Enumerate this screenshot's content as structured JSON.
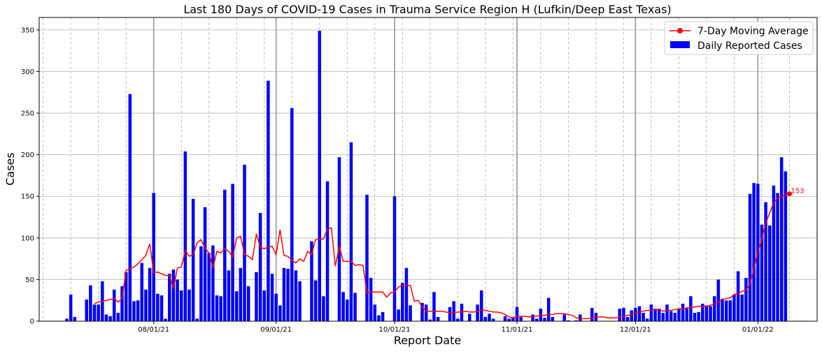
{
  "chart_data": {
    "type": "bar",
    "title": "Last 180 Days of COVID-19 Cases in Trauma Service Region H (Lufkin/Deep East Texas)",
    "xlabel": "Report Date",
    "ylabel": "Cases",
    "ylim": [
      0,
      365
    ],
    "yticks": [
      0,
      50,
      100,
      150,
      200,
      250,
      300,
      350
    ],
    "x_start": "2021-07-10",
    "xlim": [
      "2021-07-03",
      "2022-01-16"
    ],
    "xticks": [
      {
        "date": "2021-08-01",
        "label": "08/01/21"
      },
      {
        "date": "2021-09-01",
        "label": "09/01/21"
      },
      {
        "date": "2021-10-01",
        "label": "10/01/21"
      },
      {
        "date": "2021-11-01",
        "label": "11/01/21"
      },
      {
        "date": "2021-12-01",
        "label": "12/01/21"
      },
      {
        "date": "2022-01-01",
        "label": "01/01/22"
      }
    ],
    "grid": true,
    "legend_position": "top-right",
    "series": [
      {
        "name": "Daily Reported Cases",
        "kind": "bar",
        "color": "#0000ff",
        "values": [
          3,
          32,
          5,
          0,
          0,
          26,
          43,
          20,
          20,
          48,
          8,
          6,
          38,
          10,
          42,
          59,
          273,
          24,
          25,
          70,
          38,
          64,
          154,
          33,
          31,
          3,
          57,
          62,
          50,
          37,
          204,
          38,
          147,
          3,
          90,
          137,
          82,
          91,
          31,
          30,
          158,
          61,
          165,
          36,
          64,
          188,
          42,
          0,
          59,
          130,
          37,
          289,
          57,
          33,
          19,
          64,
          63,
          256,
          61,
          48,
          0,
          0,
          96,
          49,
          349,
          30,
          168,
          0,
          0,
          197,
          35,
          26,
          215,
          34,
          0,
          0,
          152,
          52,
          20,
          7,
          11,
          0,
          0,
          150,
          14,
          46,
          64,
          19,
          0,
          0,
          22,
          20,
          2,
          35,
          5,
          0,
          0,
          17,
          24,
          3,
          21,
          0,
          9,
          0,
          20,
          37,
          5,
          9,
          3,
          0,
          0,
          6,
          3,
          4,
          17,
          5,
          0,
          0,
          8,
          3,
          15,
          4,
          28,
          5,
          0,
          0,
          8,
          1,
          0,
          1,
          8,
          0,
          0,
          16,
          10,
          0,
          0,
          0,
          0,
          0,
          15,
          16,
          5,
          13,
          16,
          18,
          10,
          3,
          20,
          15,
          15,
          10,
          20,
          12,
          10,
          15,
          21,
          16,
          30,
          10,
          11,
          21,
          19,
          18,
          30,
          50,
          27,
          25,
          25,
          32,
          60,
          32,
          52,
          153,
          166,
          165,
          116,
          143,
          115,
          163,
          154,
          197,
          180
        ]
      },
      {
        "name": "7-Day Moving Average",
        "kind": "line",
        "color": "#ff0000",
        "start_index": 7,
        "values": [
          21,
          23,
          24,
          25,
          26,
          27,
          23,
          27,
          61,
          63,
          65,
          69,
          74,
          79,
          93,
          58,
          59,
          57,
          55,
          55,
          39,
          64,
          65,
          85,
          78,
          80,
          94,
          98,
          88,
          82,
          64,
          84,
          82,
          87,
          84,
          77,
          100,
          102,
          80,
          78,
          74,
          105,
          89,
          87,
          89,
          90,
          80,
          110,
          79,
          78,
          73,
          70,
          75,
          72,
          84,
          80,
          98,
          98,
          99,
          111,
          112,
          66,
          90,
          72,
          72,
          72,
          67,
          68,
          67,
          34,
          35,
          35,
          35,
          35,
          29,
          34,
          35,
          41,
          43,
          43,
          43,
          24,
          25,
          17,
          12,
          12,
          12,
          12,
          12,
          11,
          10,
          10,
          11,
          11,
          12,
          11,
          11,
          12,
          14,
          13,
          12,
          11,
          11,
          10,
          8,
          5,
          4,
          6,
          6,
          6,
          5,
          6,
          6,
          7,
          7,
          8,
          8,
          9,
          9,
          9,
          8,
          7,
          4,
          3,
          3,
          3,
          4,
          5,
          5,
          5,
          4,
          4,
          4,
          5,
          6,
          7,
          8,
          10,
          11,
          12,
          13,
          13,
          14,
          14,
          12,
          13,
          13,
          14,
          15,
          15,
          16,
          16,
          17,
          18,
          17,
          18,
          19,
          21,
          23,
          26,
          27,
          28,
          32,
          33,
          36,
          37,
          45,
          63,
          83,
          99,
          118,
          130,
          142,
          148,
          150,
          151,
          153
        ],
        "end_label": "153"
      }
    ]
  }
}
